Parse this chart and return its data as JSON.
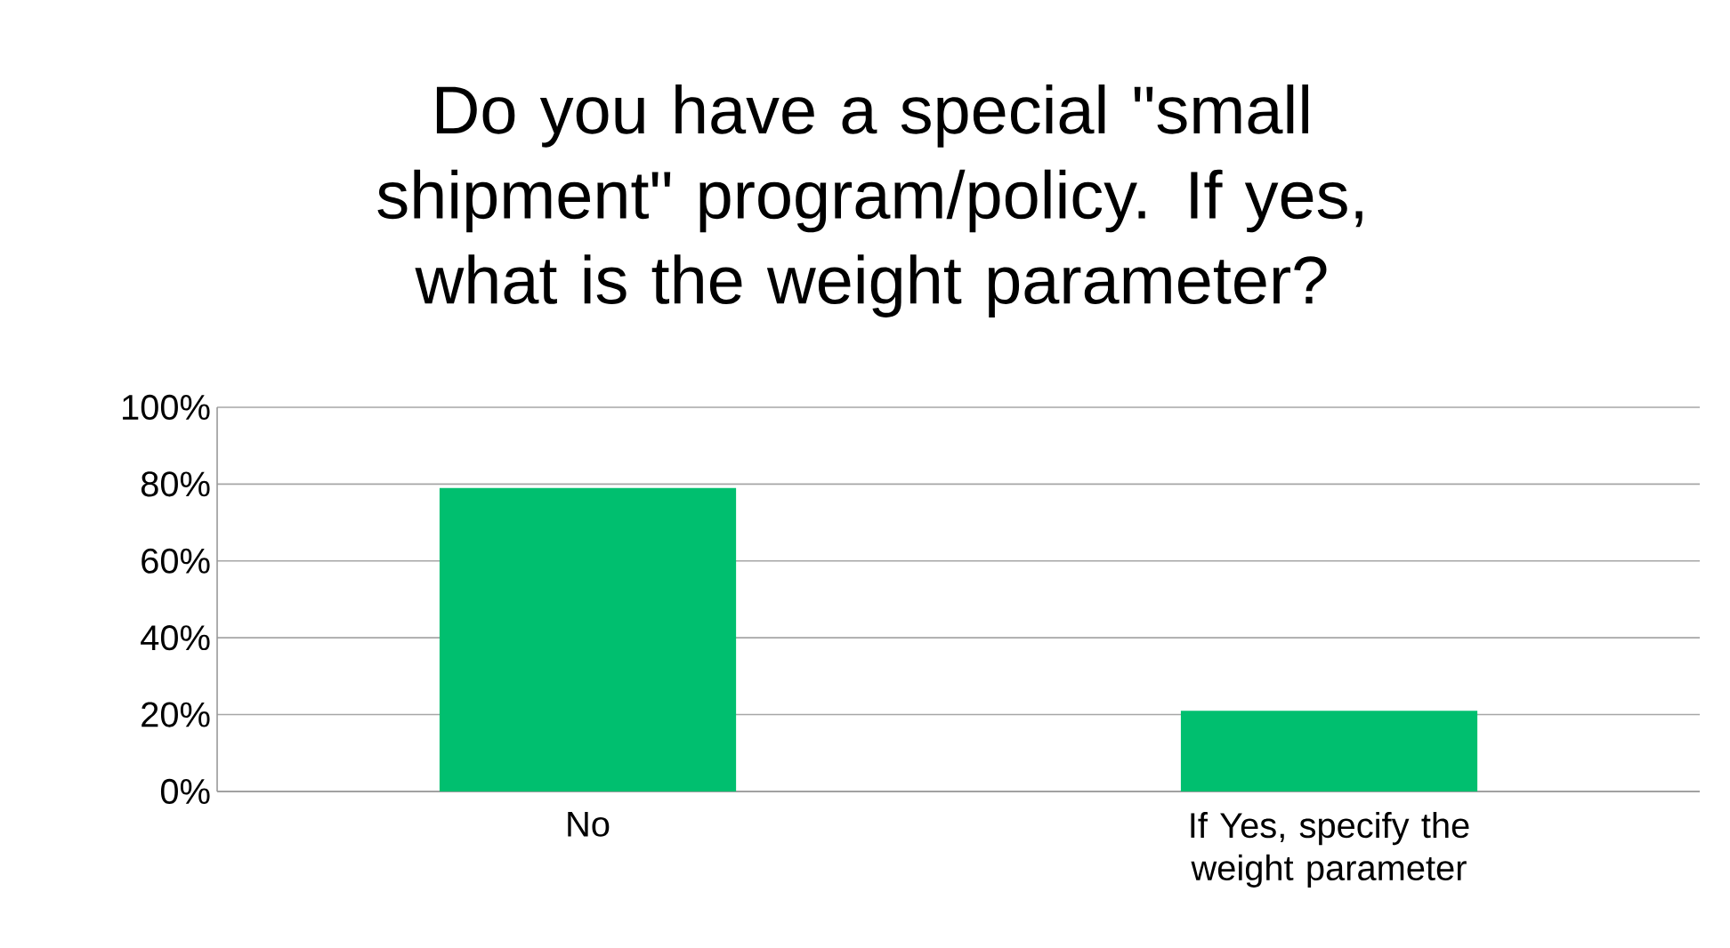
{
  "chart_data": {
    "type": "bar",
    "title": "Do you have a special \"small shipment\" program/policy. If yes, what is the weight parameter?",
    "categories": [
      "No",
      "If Yes, specify the weight parameter"
    ],
    "values": [
      79,
      21
    ],
    "color": "#00bf6f",
    "ylim": [
      0,
      100
    ],
    "yticks": [
      {
        "value": 0,
        "label": "0%"
      },
      {
        "value": 20,
        "label": "20%"
      },
      {
        "value": 40,
        "label": "40%"
      },
      {
        "value": 60,
        "label": "60%"
      },
      {
        "value": 80,
        "label": "80%"
      },
      {
        "value": 100,
        "label": "100%"
      }
    ],
    "grid": "y"
  }
}
